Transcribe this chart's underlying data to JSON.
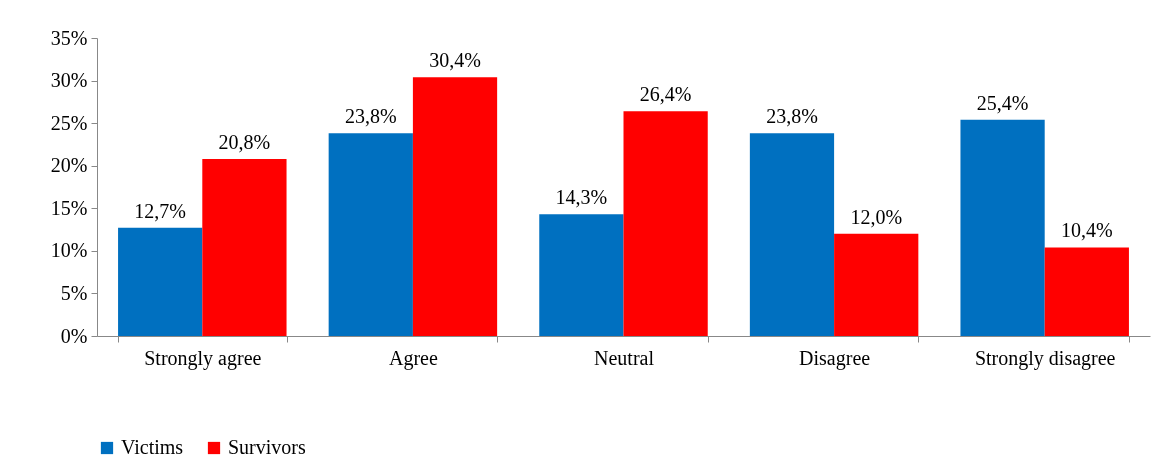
{
  "chart_data": {
    "type": "bar",
    "categories": [
      "Strongly agree",
      "Agree",
      "Neutral",
      "Disagree",
      "Strongly disagree"
    ],
    "series": [
      {
        "name": "Victims",
        "color": "#0070c0",
        "values": [
          12.7,
          23.8,
          14.3,
          23.8,
          25.4
        ],
        "value_labels": [
          "12,7%",
          "23,8%",
          "14,3%",
          "23,8%",
          "25,4%"
        ]
      },
      {
        "name": "Survivors",
        "color": "#ff0000",
        "values": [
          20.8,
          30.4,
          26.4,
          12.0,
          10.4
        ],
        "value_labels": [
          "20,8%",
          "30,4%",
          "26,4%",
          "12,0%",
          "10,4%"
        ]
      }
    ],
    "ylim": [
      0,
      35
    ],
    "yticks": [
      {
        "value": 0,
        "label": "0%"
      },
      {
        "value": 5,
        "label": "5%"
      },
      {
        "value": 10,
        "label": "10%"
      },
      {
        "value": 15,
        "label": "15%"
      },
      {
        "value": 20,
        "label": "20%"
      },
      {
        "value": 25,
        "label": "25%"
      },
      {
        "value": 30,
        "label": "30%"
      },
      {
        "value": 35,
        "label": "35%"
      }
    ],
    "grid": false,
    "legend": "bottom"
  }
}
